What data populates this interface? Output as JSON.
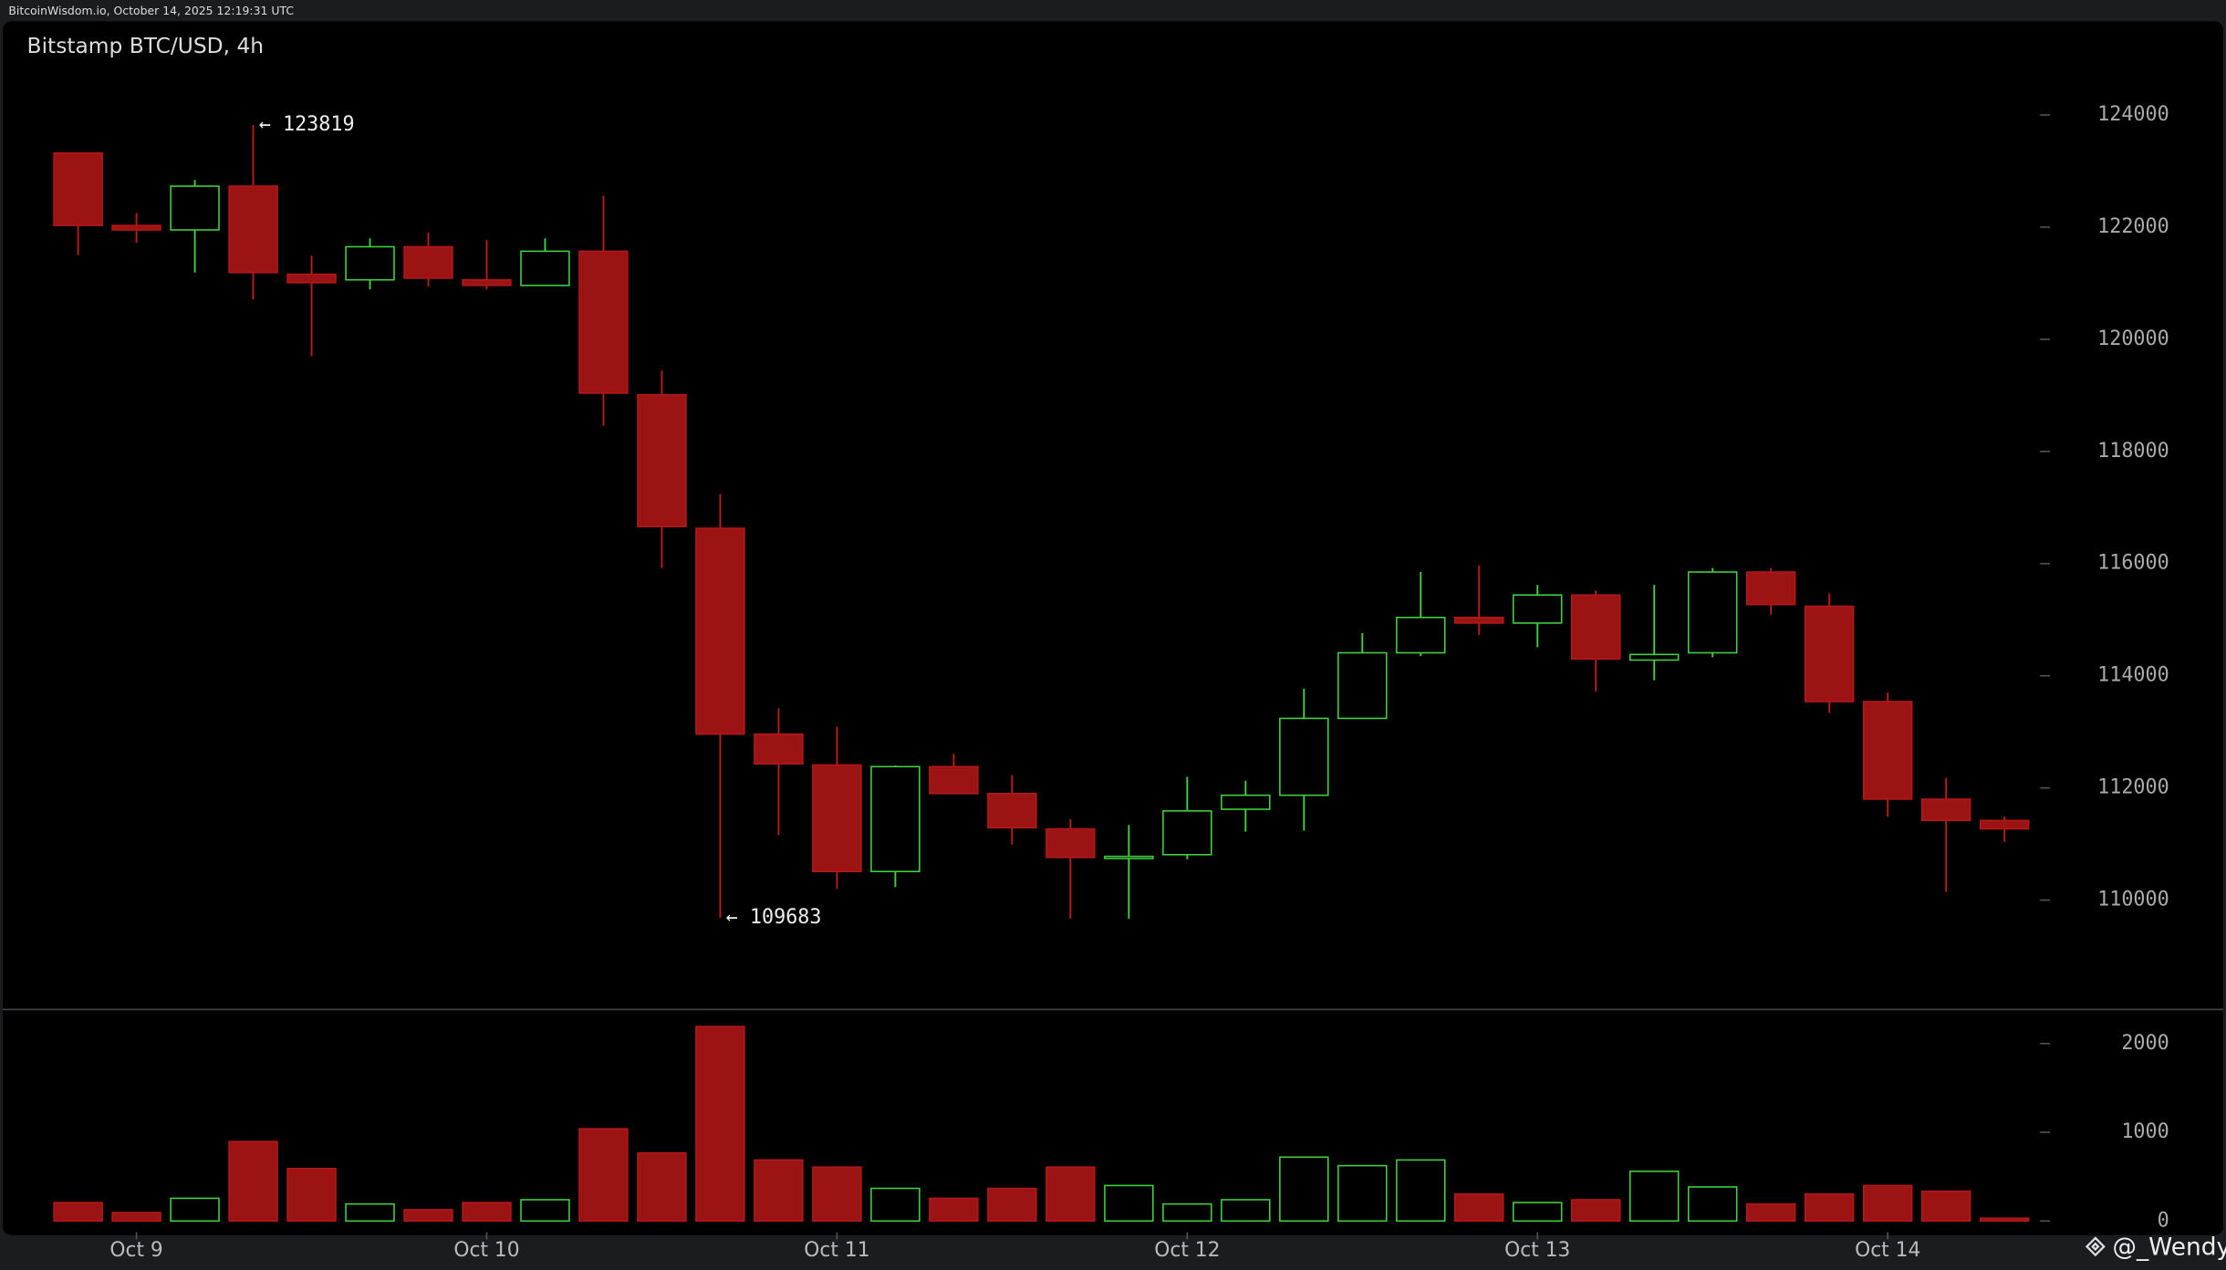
{
  "header": "BitcoinWisdom.io, October 14, 2025 12:19:31 UTC",
  "watermark": "@_Wendy",
  "chart_data": [
    {
      "type": "candlestick",
      "title": "Bitstamp BTC/USD, 4h",
      "categories": [
        null,
        "Oct 9",
        null,
        null,
        null,
        null,
        null,
        "Oct 10",
        null,
        null,
        null,
        null,
        null,
        "Oct 11",
        null,
        null,
        null,
        null,
        null,
        "Oct 12",
        null,
        null,
        null,
        null,
        null,
        "Oct 13",
        null,
        null,
        null,
        null,
        null,
        "Oct 14",
        null,
        null
      ],
      "open": [
        123320,
        122030,
        121950,
        122730,
        121160,
        121060,
        121650,
        121060,
        120960,
        121570,
        119010,
        116630,
        112960,
        112410,
        110510,
        112380,
        111900,
        111270,
        110760,
        110810,
        111620,
        111870,
        113240,
        114410,
        115040,
        114940,
        115440,
        114280,
        114410,
        115850,
        115240,
        113540,
        111800,
        111420
      ],
      "high": [
        123320,
        122250,
        122840,
        123819,
        121490,
        121800,
        121900,
        121770,
        121800,
        122560,
        119440,
        117240,
        113420,
        113090,
        112400,
        112610,
        112230,
        111440,
        111340,
        112200,
        112130,
        113770,
        114760,
        115850,
        115970,
        115620,
        115520,
        115620,
        115920,
        115920,
        115470,
        113700,
        112180,
        111490
      ],
      "low": [
        121500,
        121720,
        121190,
        120710,
        119700,
        120890,
        120940,
        120890,
        120960,
        118460,
        115920,
        109683,
        111160,
        110200,
        110230,
        111900,
        110990,
        109670,
        109670,
        110730,
        111220,
        111240,
        113240,
        114350,
        114730,
        114510,
        113720,
        113920,
        114330,
        115090,
        113340,
        111490,
        110150,
        111040
      ],
      "close": [
        122030,
        121950,
        122730,
        121190,
        121010,
        121650,
        121090,
        120960,
        121570,
        119040,
        116660,
        112960,
        112430,
        110510,
        112380,
        111900,
        111290,
        110760,
        110780,
        111590,
        111870,
        113240,
        114410,
        115040,
        114940,
        115440,
        114300,
        114380,
        115850,
        115270,
        113540,
        111800,
        111420,
        111270
      ],
      "ylim": [
        108050,
        125670
      ],
      "yticks": [
        110000,
        112000,
        114000,
        116000,
        118000,
        120000,
        122000,
        124000
      ],
      "up_color": "#3fd43f",
      "down_color": "#9b1313",
      "annotations": [
        {
          "text": "← 123819",
          "value": 123819
        },
        {
          "text": "← 109683",
          "value": 109683
        }
      ]
    },
    {
      "type": "bar",
      "values": [
        208,
        96,
        256,
        896,
        592,
        192,
        128,
        208,
        240,
        1040,
        768,
        2192,
        688,
        608,
        368,
        256,
        368,
        608,
        400,
        192,
        240,
        720,
        624,
        688,
        304,
        208,
        240,
        560,
        384,
        192,
        304,
        400,
        336,
        32
      ],
      "ylim": [
        -128,
        2384
      ],
      "yticks": [
        0,
        1000,
        2000
      ]
    }
  ]
}
